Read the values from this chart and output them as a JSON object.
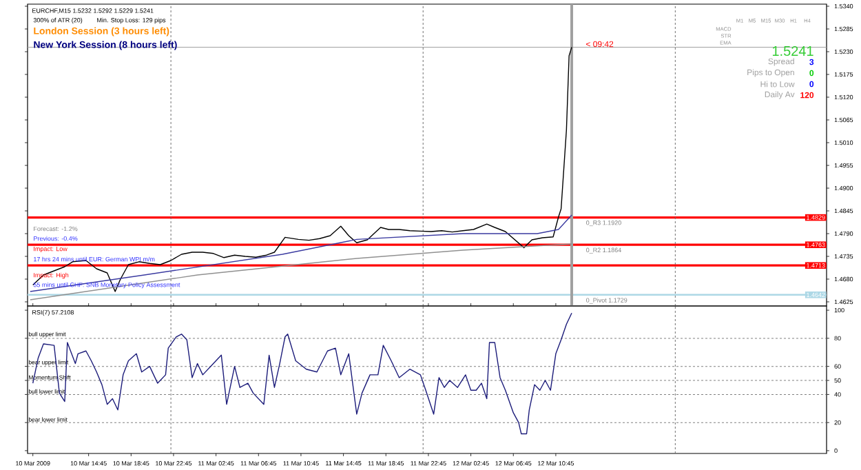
{
  "chart_data": [
    {
      "type": "line",
      "title": "EURCHF,M15  1.5232 1.5292 1.5229 1.5241",
      "xlim": [
        "2009-03-10T09:00",
        "2009-03-13T12:15"
      ],
      "ylim": [
        1.4615,
        1.5345
      ],
      "tick_labels": "y",
      "yticks": [
        {
          "value": 1.4625,
          "label": "1.4625"
        },
        {
          "value": 1.468,
          "label": "1.4680"
        },
        {
          "value": 1.4735,
          "label": "1.4735"
        },
        {
          "value": 1.479,
          "label": "1.4790"
        },
        {
          "value": 1.4845,
          "label": "1.4845"
        },
        {
          "value": 1.49,
          "label": "1.4900"
        },
        {
          "value": 1.4955,
          "label": "1.4955"
        },
        {
          "value": 1.501,
          "label": "1.5010"
        },
        {
          "value": 1.5065,
          "label": "1.5065"
        },
        {
          "value": 1.512,
          "label": "1.5120"
        },
        {
          "value": 1.5175,
          "label": "1.5175"
        },
        {
          "value": 1.523,
          "label": "1.5230"
        },
        {
          "value": 1.5285,
          "label": "1.5285"
        },
        {
          "value": 1.534,
          "label": "1.5340"
        }
      ],
      "series": [
        {
          "color": "#000000",
          "x": [
            "2009-03-10T09:30",
            "2009-03-10T10:30",
            "2009-03-10T11:30",
            "2009-03-10T12:30",
            "2009-03-10T13:15",
            "2009-03-10T14:30",
            "2009-03-10T15:30",
            "2009-03-10T16:30",
            "2009-03-10T17:15",
            "2009-03-10T17:45",
            "2009-03-10T18:30",
            "2009-03-10T19:30",
            "2009-03-10T20:30",
            "2009-03-10T21:30",
            "2009-03-10T22:30",
            "2009-03-10T23:30",
            "2009-03-11T00:30",
            "2009-03-11T01:30",
            "2009-03-11T02:30",
            "2009-03-11T03:30",
            "2009-03-11T04:30",
            "2009-03-11T05:30",
            "2009-03-11T06:30",
            "2009-03-11T07:30",
            "2009-03-11T08:15",
            "2009-03-11T09:15",
            "2009-03-11T10:30",
            "2009-03-11T11:30",
            "2009-03-11T12:30",
            "2009-03-11T13:30",
            "2009-03-11T14:30",
            "2009-03-11T15:15",
            "2009-03-11T16:00",
            "2009-03-11T17:00",
            "2009-03-11T18:15",
            "2009-03-11T19:00",
            "2009-03-11T20:00",
            "2009-03-11T21:00",
            "2009-03-11T22:00",
            "2009-03-11T23:00",
            "2009-03-12T00:00",
            "2009-03-12T01:00",
            "2009-03-12T02:00",
            "2009-03-12T03:00",
            "2009-03-12T04:15",
            "2009-03-12T05:00",
            "2009-03-12T06:00",
            "2009-03-12T07:45",
            "2009-03-12T08:30",
            "2009-03-12T09:30",
            "2009-03-12T10:30",
            "2009-03-12T11:00",
            "2009-03-12T11:15",
            "2009-03-12T11:45",
            "2009-03-12T12:00",
            "2009-03-12T12:15"
          ],
          "values": [
            1.4666,
            1.469,
            1.47,
            1.471,
            1.4722,
            1.4725,
            1.4705,
            1.4695,
            1.465,
            1.468,
            1.4715,
            1.4722,
            1.4718,
            1.4715,
            1.4725,
            1.474,
            1.4745,
            1.4745,
            1.4742,
            1.4732,
            1.4738,
            1.4735,
            1.4733,
            1.4738,
            1.4745,
            1.4781,
            1.4776,
            1.4774,
            1.4778,
            1.4785,
            1.4808,
            1.4785,
            1.4768,
            1.4775,
            1.4805,
            1.48,
            1.48,
            1.4797,
            1.4796,
            1.4795,
            1.4797,
            1.4794,
            1.4797,
            1.48,
            1.4813,
            1.4805,
            1.4795,
            1.4756,
            1.4775,
            1.478,
            1.4782,
            1.483,
            1.485,
            1.504,
            1.522,
            1.5241
          ]
        },
        {
          "color": "#3a3aa0",
          "x": [
            "2009-03-10T09:15",
            "2009-03-10T20:00",
            "2009-03-11T09:00",
            "2009-03-11T16:00",
            "2009-03-12T02:00",
            "2009-03-12T09:00",
            "2009-03-12T11:00",
            "2009-03-12T12:15"
          ],
          "values": [
            1.465,
            1.469,
            1.474,
            1.4776,
            1.479,
            1.479,
            1.48,
            1.4835
          ]
        },
        {
          "color": "#909090",
          "x": [
            "2009-03-10T09:15",
            "2009-03-11T01:00",
            "2009-03-11T16:00",
            "2009-03-12T02:00",
            "2009-03-12T12:15"
          ],
          "values": [
            1.463,
            1.469,
            1.473,
            1.475,
            1.4765
          ]
        }
      ],
      "ref_lines": [
        {
          "axis": "y",
          "value": 1.4829,
          "label": "1.4829",
          "color": "#ff0000",
          "line_style": "solid"
        },
        {
          "axis": "y",
          "value": 1.4763,
          "label": "1.4763",
          "color": "#ff0000",
          "line_style": "solid"
        },
        {
          "axis": "y",
          "value": 1.4713,
          "label": "1.4713",
          "color": "#ff0000",
          "line_style": "solid"
        },
        {
          "axis": "y",
          "value": 1.4642,
          "label": "1.4642",
          "color": "#add8e6",
          "line_style": "solid"
        },
        {
          "axis": "y",
          "value": 1.5241,
          "color": "#a0a0a0",
          "line_style": "solid"
        },
        {
          "axis": "x",
          "value": "2009-03-12T12:15",
          "color": "#a0a0a0",
          "line_style": "solid"
        },
        {
          "axis": "x",
          "value": "2009-03-10T22:30",
          "color": "#707070",
          "line_style": "dashed"
        },
        {
          "axis": "x",
          "value": "2009-03-11T22:15",
          "color": "#707070",
          "line_style": "dashed"
        },
        {
          "axis": "x",
          "value": "2009-03-12T22:00",
          "color": "#707070",
          "line_style": "dashed"
        }
      ],
      "annotations": [
        "300% of ATR (20)",
        "Min. Stop Loss: 129 pips",
        "London Session (3 hours left)",
        "New York Session (8 hours left)",
        "< 09:42",
        "MACD",
        "STR",
        "EMA",
        "M1",
        "M5",
        "M15",
        "M30",
        "H1",
        "H4",
        "1.5241",
        "Spread",
        "3",
        "Pips to Open",
        "0",
        "Hi to Low",
        "0",
        "Daily Av",
        "120",
        "Forecast: -1.2%",
        "Previous: -0.4%",
        "Impact: Low",
        "17 hrs 24 mins until EUR: German WPI m/m",
        "Impact: High",
        "55 mins until CHF: SNB Monetary Policy Assessment",
        {
          "text": "0_R3 1.1920",
          "x": "2009-03-12T13:30",
          "y": 1.4829
        },
        {
          "text": "0_R2 1.1864",
          "x": "2009-03-12T13:30",
          "y": 1.4763
        },
        {
          "text": "0_Pivot 1.1729",
          "x": "2009-03-12T13:30",
          "y": 1.4642
        }
      ]
    },
    {
      "type": "line",
      "title": "RSI(7) 57.2108",
      "xlim": [
        "2009-03-10T09:00",
        "2009-03-13T12:15"
      ],
      "ylim": [
        -2,
        103
      ],
      "yticks": [
        0,
        20,
        40,
        50,
        60,
        80,
        100
      ],
      "xticks": [
        {
          "value": "2009-03-10T09:30",
          "label": "10 Mar 2009"
        },
        {
          "value": "2009-03-10T14:45",
          "label": "10 Mar 14:45"
        },
        {
          "value": "2009-03-10T18:45",
          "label": "10 Mar 18:45"
        },
        {
          "value": "2009-03-10T22:45",
          "label": "10 Mar 22:45"
        },
        {
          "value": "2009-03-11T02:45",
          "label": "11 Mar 02:45"
        },
        {
          "value": "2009-03-11T06:45",
          "label": "11 Mar 06:45"
        },
        {
          "value": "2009-03-11T10:45",
          "label": "11 Mar 10:45"
        },
        {
          "value": "2009-03-11T14:45",
          "label": "11 Mar 14:45"
        },
        {
          "value": "2009-03-11T18:45",
          "label": "11 Mar 18:45"
        },
        {
          "value": "2009-03-11T22:45",
          "label": "11 Mar 22:45"
        },
        {
          "value": "2009-03-12T02:45",
          "label": "12 Mar 02:45"
        },
        {
          "value": "2009-03-12T06:45",
          "label": "12 Mar 06:45"
        },
        {
          "value": "2009-03-12T10:45",
          "label": "12 Mar 10:45"
        }
      ],
      "series": [
        {
          "color": "#1c1c7a",
          "x": [
            "2009-03-10T09:30",
            "2009-03-10T10:00",
            "2009-03-10T10:30",
            "2009-03-10T11:30",
            "2009-03-10T12:00",
            "2009-03-10T12:30",
            "2009-03-10T12:45",
            "2009-03-10T13:30",
            "2009-03-10T13:45",
            "2009-03-10T14:30",
            "2009-03-10T15:00",
            "2009-03-10T15:30",
            "2009-03-10T16:00",
            "2009-03-10T16:30",
            "2009-03-10T17:00",
            "2009-03-10T17:30",
            "2009-03-10T18:00",
            "2009-03-10T18:30",
            "2009-03-10T19:15",
            "2009-03-10T19:45",
            "2009-03-10T20:30",
            "2009-03-10T21:15",
            "2009-03-10T22:00",
            "2009-03-10T22:15",
            "2009-03-10T23:00",
            "2009-03-10T23:30",
            "2009-03-11T00:00",
            "2009-03-11T00:30",
            "2009-03-11T01:00",
            "2009-03-11T01:30",
            "2009-03-11T02:30",
            "2009-03-11T03:15",
            "2009-03-11T03:45",
            "2009-03-11T04:30",
            "2009-03-11T05:00",
            "2009-03-11T05:45",
            "2009-03-11T06:15",
            "2009-03-11T07:15",
            "2009-03-11T07:45",
            "2009-03-11T08:15",
            "2009-03-11T08:45",
            "2009-03-11T09:15",
            "2009-03-11T09:30",
            "2009-03-11T10:15",
            "2009-03-11T11:15",
            "2009-03-11T12:15",
            "2009-03-11T13:15",
            "2009-03-11T14:00",
            "2009-03-11T14:30",
            "2009-03-11T15:15",
            "2009-03-11T16:00",
            "2009-03-11T16:30",
            "2009-03-11T17:15",
            "2009-03-11T18:00",
            "2009-03-11T18:30",
            "2009-03-11T19:15",
            "2009-03-11T20:00",
            "2009-03-11T21:00",
            "2009-03-11T22:00",
            "2009-03-11T22:30",
            "2009-03-11T23:15",
            "2009-03-11T23:45",
            "2009-03-12T00:15",
            "2009-03-12T00:45",
            "2009-03-12T01:30",
            "2009-03-12T02:15",
            "2009-03-12T02:45",
            "2009-03-12T03:15",
            "2009-03-12T03:45",
            "2009-03-12T04:15",
            "2009-03-12T04:30",
            "2009-03-12T05:00",
            "2009-03-12T05:30",
            "2009-03-12T06:00",
            "2009-03-12T06:45",
            "2009-03-12T07:15",
            "2009-03-12T07:30",
            "2009-03-12T08:00",
            "2009-03-12T08:15",
            "2009-03-12T08:45",
            "2009-03-12T09:15",
            "2009-03-12T09:45",
            "2009-03-12T10:15",
            "2009-03-12T10:45",
            "2009-03-12T11:15",
            "2009-03-12T11:45",
            "2009-03-12T12:15"
          ],
          "values": [
            48,
            66,
            76,
            75,
            41,
            35,
            77,
            62,
            69,
            71,
            64,
            56,
            47,
            33,
            37,
            29,
            54,
            64,
            69,
            56,
            60,
            48,
            54,
            73,
            81,
            83,
            79,
            52,
            62,
            54,
            62,
            68,
            33,
            60,
            45,
            48,
            41,
            33,
            68,
            45,
            62,
            81,
            83,
            64,
            58,
            56,
            71,
            73,
            54,
            69,
            26,
            41,
            54,
            54,
            75,
            64,
            52,
            58,
            54,
            43,
            26,
            52,
            45,
            50,
            45,
            54,
            43,
            43,
            48,
            37,
            77,
            77,
            52,
            43,
            27,
            20,
            12,
            12,
            29,
            47,
            43,
            50,
            43,
            69,
            79,
            90,
            98
          ]
        }
      ],
      "ref_lines": [
        {
          "axis": "y",
          "value": 80,
          "label": "bull upper limit",
          "color": "#808080",
          "line_style": "dashed"
        },
        {
          "axis": "y",
          "value": 60,
          "label": "bear upper limit",
          "color": "#808080",
          "line_style": "dashed"
        },
        {
          "axis": "y",
          "value": 50,
          "label": "Momentum Shift",
          "color": "#808080",
          "line_style": "dashed"
        },
        {
          "axis": "y",
          "value": 40,
          "label": "bull lower limit",
          "color": "#808080",
          "line_style": "dashed"
        },
        {
          "axis": "y",
          "value": 20,
          "label": "bear lower limit",
          "color": "#808080",
          "line_style": "dashed"
        },
        {
          "axis": "x",
          "value": "2009-03-10T22:30",
          "color": "#707070",
          "line_style": "dashed"
        },
        {
          "axis": "x",
          "value": "2009-03-11T22:15",
          "color": "#707070",
          "line_style": "dashed"
        },
        {
          "axis": "x",
          "value": "2009-03-12T22:00",
          "color": "#707070",
          "line_style": "dashed"
        }
      ]
    }
  ]
}
